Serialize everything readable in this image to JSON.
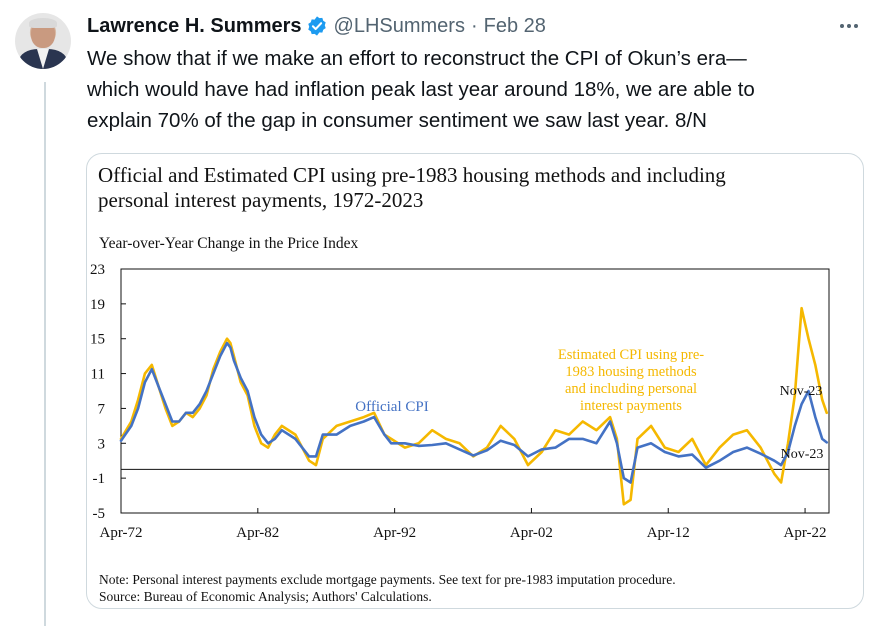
{
  "tweet": {
    "author_name": "Lawrence H. Summers",
    "handle": "@LHSummers",
    "separator": "·",
    "date": "Feb 28",
    "text_lines": [
      "We show that if we make an effort to reconstruct the CPI of Okun’s era—",
      "which would have had inflation peak last year around 18%, we are able to",
      "explain 70% of the gap in consumer sentiment we saw last year. 8/N"
    ]
  },
  "icons": {
    "verified": "verified-badge-icon",
    "more": "more-options-icon"
  },
  "colors": {
    "verified_blue": "#1d9bf0",
    "official_cpi": "#4472c4",
    "estimated_cpi": "#f5b800",
    "muted_text": "#536471"
  },
  "figure": {
    "title_lines": [
      "Official and Estimated CPI using pre-1983 housing methods and including",
      "personal interest payments, 1972-2023"
    ],
    "y_axis_title": "Year-over-Year Change in the Price Index",
    "note_lines": [
      "Note: Personal interest payments exclude mortgage payments. See text for pre-1983 imputation procedure.",
      "Source: Bureau of Economic Analysis; Authors' Calculations."
    ]
  },
  "chart_data": {
    "type": "line",
    "title": "Official and Estimated CPI using pre-1983 housing methods and including personal interest payments, 1972-2023",
    "ylabel": "Year-over-Year Change in the Price Index",
    "xlabel": "",
    "ylim": [
      -5,
      23
    ],
    "xlim": [
      1972.25,
      2024.0
    ],
    "y_ticks": [
      23,
      19,
      15,
      11,
      7,
      3,
      -1,
      -5
    ],
    "x_ticks": [
      {
        "label": "Apr-72",
        "x": 1972.25
      },
      {
        "label": "Apr-82",
        "x": 1982.25
      },
      {
        "label": "Apr-92",
        "x": 1992.25
      },
      {
        "label": "Apr-02",
        "x": 2002.25
      },
      {
        "label": "Apr-12",
        "x": 2012.25
      },
      {
        "label": "Apr-22",
        "x": 2022.25
      }
    ],
    "zero_line": 0,
    "grid": false,
    "series": [
      {
        "name": "Official CPI",
        "color": "#4472c4",
        "x": [
          1972.25,
          1973.0,
          1973.5,
          1974.0,
          1974.5,
          1975.0,
          1975.5,
          1976.0,
          1976.5,
          1977.0,
          1977.5,
          1978.0,
          1978.5,
          1979.0,
          1979.5,
          1980.0,
          1980.25,
          1980.5,
          1981.0,
          1981.5,
          1982.0,
          1982.5,
          1983.0,
          1983.5,
          1984.0,
          1985.0,
          1986.0,
          1986.5,
          1987.0,
          1988.0,
          1989.0,
          1990.0,
          1990.75,
          1991.5,
          1992.0,
          1993.0,
          1994.0,
          1995.0,
          1996.0,
          1997.0,
          1998.0,
          1999.0,
          2000.0,
          2001.0,
          2002.0,
          2003.0,
          2004.0,
          2005.0,
          2006.0,
          2007.0,
          2008.0,
          2008.5,
          2009.0,
          2009.5,
          2010.0,
          2011.0,
          2012.0,
          2013.0,
          2014.0,
          2015.0,
          2016.0,
          2017.0,
          2018.0,
          2019.0,
          2020.0,
          2020.5,
          2021.0,
          2021.5,
          2022.0,
          2022.5,
          2023.0,
          2023.5,
          2023.83
        ],
        "values": [
          3.3,
          5.0,
          7.0,
          10.0,
          11.5,
          9.5,
          7.5,
          5.5,
          5.5,
          6.5,
          6.5,
          7.5,
          9.0,
          11.0,
          13.0,
          14.5,
          14.0,
          12.5,
          10.5,
          9.0,
          6.0,
          4.0,
          3.0,
          3.5,
          4.5,
          3.5,
          1.5,
          1.5,
          4.0,
          4.0,
          5.0,
          5.5,
          6.0,
          4.0,
          3.0,
          3.0,
          2.7,
          2.8,
          3.0,
          2.3,
          1.6,
          2.2,
          3.3,
          2.8,
          1.5,
          2.3,
          2.5,
          3.5,
          3.5,
          3.0,
          5.5,
          3.0,
          -1.0,
          -1.5,
          2.5,
          3.0,
          2.0,
          1.5,
          1.7,
          0.2,
          1.0,
          2.0,
          2.5,
          1.8,
          1.0,
          0.5,
          2.0,
          5.0,
          7.5,
          9.0,
          6.0,
          3.5,
          3.1
        ]
      },
      {
        "name": "Estimated CPI using pre-1983 housing methods and including personal interest payments",
        "color": "#f5b800",
        "x": [
          1972.25,
          1973.0,
          1973.5,
          1974.0,
          1974.5,
          1975.0,
          1975.5,
          1976.0,
          1976.5,
          1977.0,
          1977.5,
          1978.0,
          1978.5,
          1979.0,
          1979.5,
          1980.0,
          1980.25,
          1980.5,
          1981.0,
          1981.5,
          1982.0,
          1982.5,
          1983.0,
          1983.5,
          1984.0,
          1985.0,
          1986.0,
          1986.5,
          1987.0,
          1988.0,
          1989.0,
          1990.0,
          1990.75,
          1991.5,
          1992.0,
          1993.0,
          1994.0,
          1995.0,
          1996.0,
          1997.0,
          1998.0,
          1999.0,
          2000.0,
          2001.0,
          2002.0,
          2003.0,
          2004.0,
          2005.0,
          2006.0,
          2007.0,
          2008.0,
          2008.5,
          2009.0,
          2009.5,
          2010.0,
          2011.0,
          2012.0,
          2013.0,
          2014.0,
          2015.0,
          2016.0,
          2017.0,
          2018.0,
          2019.0,
          2020.0,
          2020.5,
          2021.0,
          2021.5,
          2022.0,
          2022.5,
          2023.0,
          2023.5,
          2023.83
        ],
        "values": [
          3.5,
          5.5,
          8.0,
          11.0,
          12.0,
          9.5,
          7.0,
          5.0,
          5.5,
          6.5,
          6.0,
          7.0,
          8.5,
          11.5,
          13.5,
          15.0,
          14.5,
          13.0,
          10.0,
          8.5,
          5.0,
          3.0,
          2.5,
          4.0,
          5.0,
          4.0,
          1.0,
          0.5,
          3.5,
          5.0,
          5.5,
          6.0,
          6.5,
          4.0,
          3.5,
          2.5,
          3.0,
          4.5,
          3.5,
          3.0,
          1.5,
          2.5,
          5.0,
          3.5,
          0.5,
          2.0,
          4.5,
          4.0,
          5.5,
          4.5,
          6.0,
          3.5,
          -4.0,
          -3.5,
          3.5,
          5.0,
          2.5,
          2.0,
          3.5,
          0.5,
          2.5,
          4.0,
          4.5,
          2.5,
          -0.5,
          -1.5,
          3.0,
          8.5,
          18.5,
          15.0,
          12.0,
          8.0,
          6.5
        ]
      }
    ],
    "annotations": [
      {
        "text_lines": [
          "Official CPI"
        ],
        "color": "#4472c4"
      },
      {
        "text_lines": [
          "Estimated CPI using pre-",
          "1983 housing methods",
          "and including  personal",
          "interest payments"
        ],
        "color": "#f5b800"
      },
      {
        "text_lines": [
          "Nov-23"
        ],
        "color": "#111111"
      },
      {
        "text_lines": [
          "Nov-23"
        ],
        "color": "#111111"
      }
    ]
  }
}
